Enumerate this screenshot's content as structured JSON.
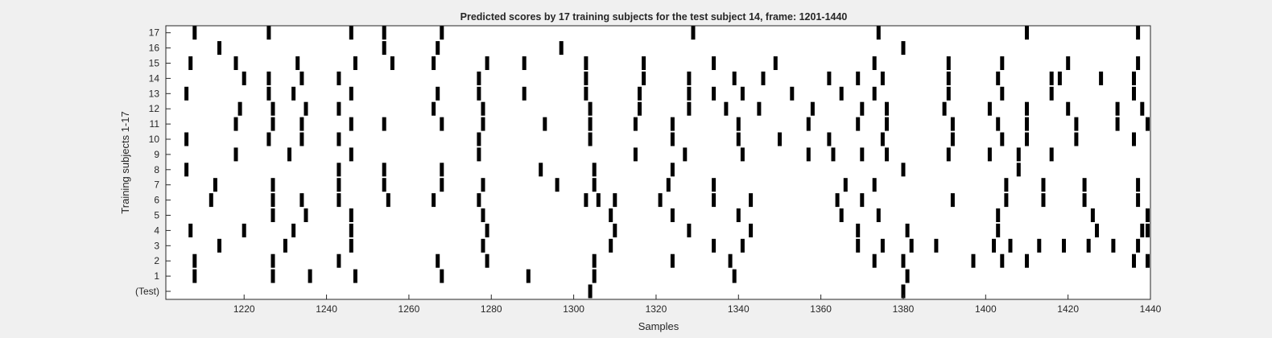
{
  "chart_data": {
    "type": "heatmap",
    "title": "Predicted scores by 17 training subjects for the test subject 14, frame: 1201-1440",
    "xlabel": "Samples",
    "ylabel": "Training subjects 1-17",
    "xlim": [
      1201,
      1440
    ],
    "xticks": [
      "1220",
      "1240",
      "1260",
      "1280",
      "1300",
      "1320",
      "1340",
      "1360",
      "1380",
      "1400",
      "1420",
      "1440"
    ],
    "xtick_values": [
      1220,
      1240,
      1260,
      1280,
      1300,
      1320,
      1340,
      1360,
      1380,
      1400,
      1420,
      1440
    ],
    "ylabels": [
      "(Test)",
      "1",
      "2",
      "3",
      "4",
      "5",
      "6",
      "7",
      "8",
      "9",
      "10",
      "11",
      "12",
      "13",
      "14",
      "15",
      "16",
      "17"
    ],
    "grid": false,
    "colors": {
      "marker": "#000000",
      "background": "#ffffff",
      "figure": "#f0f0f0"
    },
    "rows": [
      {
        "label": "(Test)",
        "samples": [
          1304,
          1380
        ]
      },
      {
        "label": "1",
        "samples": [
          1208,
          1227,
          1236,
          1247,
          1268,
          1289,
          1305,
          1339,
          1381
        ]
      },
      {
        "label": "2",
        "samples": [
          1208,
          1227,
          1243,
          1267,
          1279,
          1305,
          1324,
          1338,
          1373,
          1380,
          1397,
          1404,
          1410,
          1436,
          1440
        ]
      },
      {
        "label": "3",
        "samples": [
          1214,
          1230,
          1246,
          1278,
          1309,
          1334,
          1341,
          1369,
          1375,
          1382,
          1388,
          1402,
          1406,
          1413,
          1419,
          1425,
          1431,
          1437
        ]
      },
      {
        "label": "4",
        "samples": [
          1207,
          1220,
          1232,
          1246,
          1279,
          1310,
          1328,
          1343,
          1369,
          1381,
          1403,
          1427,
          1438,
          1440
        ]
      },
      {
        "label": "5",
        "samples": [
          1227,
          1235,
          1246,
          1278,
          1309,
          1324,
          1340,
          1365,
          1374,
          1403,
          1426,
          1440
        ]
      },
      {
        "label": "6",
        "samples": [
          1212,
          1227,
          1234,
          1243,
          1255,
          1266,
          1277,
          1303,
          1306,
          1310,
          1321,
          1334,
          1343,
          1364,
          1370,
          1392,
          1405,
          1414,
          1424,
          1437
        ]
      },
      {
        "label": "7",
        "samples": [
          1213,
          1227,
          1243,
          1254,
          1268,
          1278,
          1296,
          1305,
          1323,
          1334,
          1366,
          1373,
          1405,
          1414,
          1424,
          1437
        ]
      },
      {
        "label": "8",
        "samples": [
          1206,
          1243,
          1254,
          1268,
          1292,
          1305,
          1324,
          1380,
          1408
        ]
      },
      {
        "label": "9",
        "samples": [
          1218,
          1231,
          1246,
          1277,
          1315,
          1327,
          1341,
          1357,
          1363,
          1370,
          1376,
          1391,
          1401,
          1408,
          1416
        ]
      },
      {
        "label": "10",
        "samples": [
          1206,
          1226,
          1234,
          1243,
          1277,
          1304,
          1324,
          1340,
          1350,
          1362,
          1375,
          1392,
          1404,
          1410,
          1422,
          1436
        ]
      },
      {
        "label": "11",
        "samples": [
          1218,
          1227,
          1234,
          1246,
          1254,
          1268,
          1278,
          1293,
          1304,
          1315,
          1324,
          1340,
          1357,
          1369,
          1376,
          1392,
          1403,
          1410,
          1422,
          1432,
          1440
        ]
      },
      {
        "label": "12",
        "samples": [
          1219,
          1227,
          1235,
          1243,
          1266,
          1278,
          1304,
          1316,
          1328,
          1337,
          1345,
          1358,
          1370,
          1376,
          1390,
          1401,
          1410,
          1420,
          1432,
          1438
        ]
      },
      {
        "label": "13",
        "samples": [
          1206,
          1226,
          1232,
          1246,
          1267,
          1277,
          1288,
          1303,
          1316,
          1328,
          1334,
          1341,
          1353,
          1365,
          1373,
          1391,
          1404,
          1416,
          1436
        ]
      },
      {
        "label": "14",
        "samples": [
          1220,
          1226,
          1234,
          1243,
          1277,
          1303,
          1317,
          1328,
          1339,
          1346,
          1362,
          1369,
          1375,
          1391,
          1403,
          1416,
          1418,
          1428,
          1436
        ]
      },
      {
        "label": "15",
        "samples": [
          1207,
          1218,
          1233,
          1247,
          1256,
          1266,
          1279,
          1288,
          1303,
          1317,
          1334,
          1349,
          1373,
          1391,
          1404,
          1420,
          1437
        ]
      },
      {
        "label": "16",
        "samples": [
          1214,
          1254,
          1267,
          1297,
          1380
        ]
      },
      {
        "label": "17",
        "samples": [
          1208,
          1226,
          1246,
          1254,
          1268,
          1329,
          1374,
          1410,
          1437
        ]
      }
    ]
  }
}
